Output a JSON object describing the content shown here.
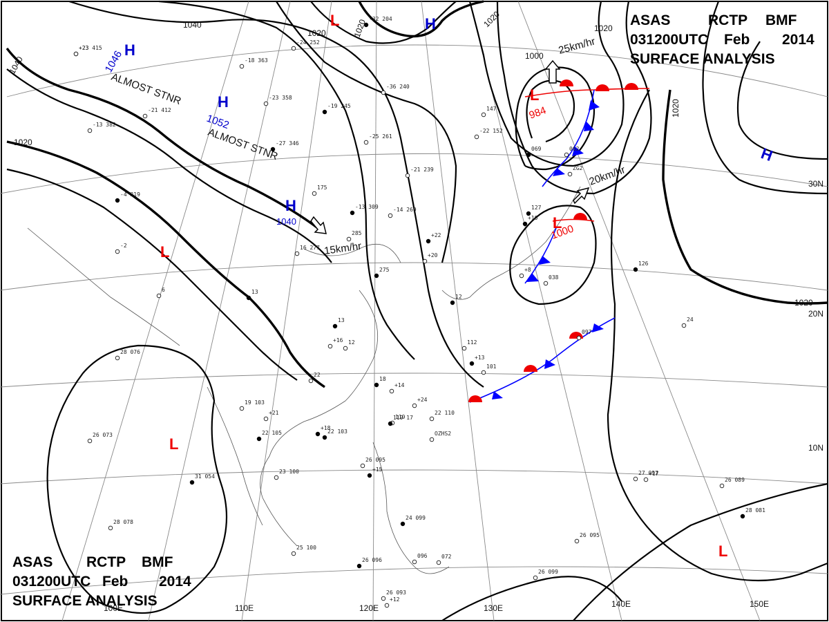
{
  "header_top": {
    "line1": [
      "ASAS",
      "RCTP",
      "BMF"
    ],
    "line2": [
      "031200UTC",
      "Feb",
      "2014"
    ],
    "line3": "SURFACE ANALYSIS"
  },
  "header_bottom": {
    "line1": [
      "ASAS",
      "RCTP",
      "BMF"
    ],
    "line2": [
      "031200UTC",
      "Feb",
      "2014"
    ],
    "line3": "SURFACE ANALYSIS"
  },
  "longitude_labels": [
    "100E",
    "110E",
    "120E",
    "130E",
    "140E",
    "150E"
  ],
  "latitude_labels": [
    "30N",
    "20N",
    "10N"
  ],
  "isobar_labels": [
    "1040",
    "1040",
    "1020",
    "1020",
    "1020",
    "1020",
    "1020",
    "1000",
    "1020"
  ],
  "pressure_centers": [
    {
      "type": "H",
      "value": "1046",
      "note": "ALMOST STNR"
    },
    {
      "type": "H",
      "value": "1052",
      "note": "ALMOST STNR"
    },
    {
      "type": "H",
      "value": "1040",
      "note": ""
    },
    {
      "type": "H",
      "value": "",
      "note": ""
    },
    {
      "type": "H",
      "value": "",
      "note": ""
    },
    {
      "type": "L",
      "value": "",
      "note": ""
    },
    {
      "type": "L",
      "value": "984",
      "note": ""
    },
    {
      "type": "L",
      "value": "1000",
      "note": ""
    },
    {
      "type": "L",
      "value": "",
      "note": ""
    },
    {
      "type": "L",
      "value": "",
      "note": ""
    },
    {
      "type": "L",
      "value": "",
      "note": ""
    }
  ],
  "motion_labels": [
    "25km/hr",
    "20km/hr",
    "15km/hr"
  ],
  "station_obs": [
    "-23 415",
    "-21 412",
    "-13 382",
    "-4 219",
    "-2",
    "6",
    "13",
    "28 076",
    "26 073",
    "31 054",
    "28 078",
    "19 103",
    "22 105",
    "23 100",
    "25 100",
    "26 096",
    "26 093",
    "26 095",
    "22 103",
    "22 110",
    "119",
    "18",
    "22",
    "12",
    "13",
    "175",
    "16 277",
    "-13 309",
    "-14 269",
    "285",
    "275",
    "-21 239",
    "-25 261",
    "-19 245",
    "-36 240",
    "-23 358",
    "-27 346",
    "-18 363",
    "-24 252",
    "-32 204",
    "-22 152",
    "147",
    "069",
    "062",
    "038",
    "12",
    "112",
    "101",
    "127",
    "097",
    "24",
    "126",
    "27 097",
    "26 089",
    "28 081",
    "26 099",
    "26 095",
    "24 099",
    "072",
    "096",
    "119 17",
    "OZHS2",
    "ZG2",
    "+10",
    "+8",
    "+20",
    "+22",
    "+16",
    "+14",
    "+18",
    "+24",
    "+21",
    "+13",
    "+17",
    "+12",
    "+15",
    "+23"
  ]
}
